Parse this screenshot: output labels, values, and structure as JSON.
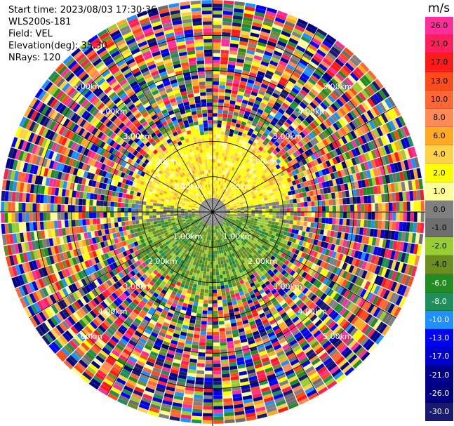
{
  "header": {
    "start_time": "Start time: 2023/08/03 17:30:36",
    "instrument": "WLS200s-181",
    "field": "Field: VEL",
    "elevation": "Elevation(deg): 35.30",
    "nrays": "NRays: 120"
  },
  "colorbar": {
    "unit": "m/s",
    "labels": [
      "26.0",
      "21.0",
      "17.0",
      "13.0",
      "10.0",
      "8.0",
      "6.0",
      "4.0",
      "2.0",
      "1.0",
      "0.0",
      "-1.0",
      "-2.0",
      "-4.0",
      "-6.0",
      "-8.0",
      "-10.0",
      "-13.0",
      "-17.0",
      "-21.0",
      "-26.0",
      "-30.0"
    ],
    "colors": [
      "#ff2e9a",
      "#ff1f5a",
      "#ff1a1a",
      "#ff4a1a",
      "#ff6633",
      "#ff8a55",
      "#ffaa22",
      "#ffd24a",
      "#ffff00",
      "#ffff99",
      "#808080",
      "#6e6e6e",
      "#9acd32",
      "#6b8e23",
      "#228b22",
      "#1f8f5a",
      "#1e90ff",
      "#0000ff",
      "#0000cd",
      "#00008b",
      "#000080",
      "#191970"
    ],
    "text_colors": [
      "#000",
      "#000",
      "#000",
      "#000",
      "#000",
      "#000",
      "#000",
      "#000",
      "#000",
      "#000",
      "#000",
      "#000",
      "#000",
      "#000",
      "#fff",
      "#fff",
      "#fff",
      "#fff",
      "#fff",
      "#fff",
      "#fff",
      "#fff"
    ]
  },
  "chart_data": {
    "type": "heatmap",
    "title": "",
    "ring_labels_km": [
      "1.00km",
      "2.00km",
      "3.00km",
      "4.00km",
      "5.00km"
    ],
    "range_rings_km": [
      1,
      2,
      3,
      4,
      5
    ],
    "max_range_km": 6,
    "n_rays": 120,
    "valid_range_km": 2.3,
    "velocity_units": "m/s",
    "velocity_range": [
      -30,
      26
    ],
    "pattern": "northern sector positive (+2 to +6 m/s, yellow/orange), southern sector negative (-2 to -8 m/s, green), noise beyond ~2.3 km"
  }
}
